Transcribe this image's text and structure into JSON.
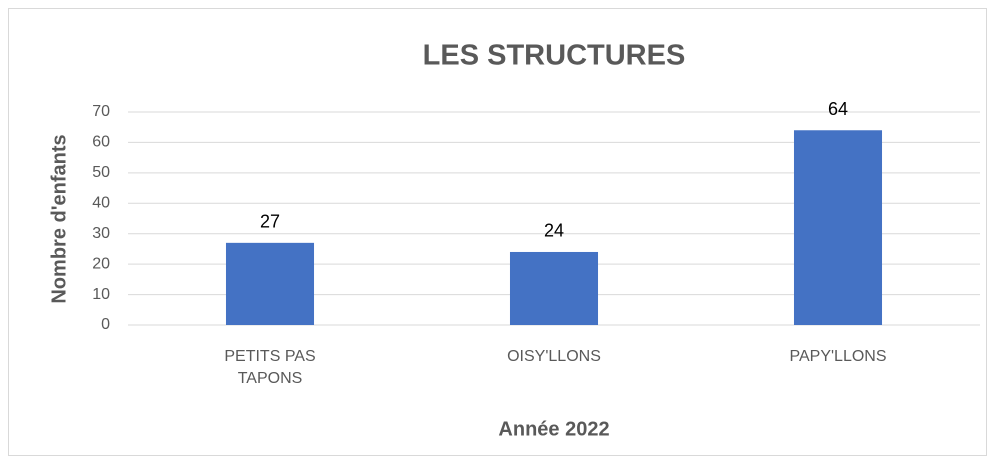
{
  "chart_data": {
    "type": "bar",
    "title": "LES STRUCTURES",
    "x_label": "Année 2022",
    "y_label": "Nombre d'enfants",
    "categories": [
      "PETITS PAS TAPONS",
      "OISY'LLONS",
      "PAPY'LLONS"
    ],
    "values": [
      27,
      24,
      64
    ],
    "color": "#4472c4",
    "ylim": [
      0,
      70
    ],
    "yticks": [
      0,
      10,
      20,
      30,
      40,
      50,
      60,
      70
    ],
    "grid": true
  }
}
